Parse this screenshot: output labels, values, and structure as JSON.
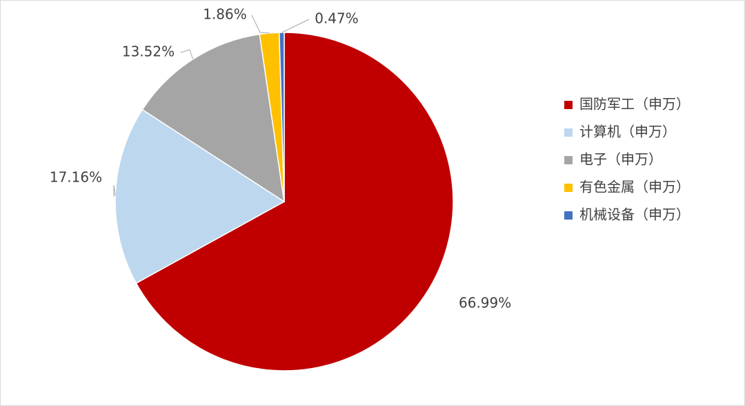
{
  "chart_data": {
    "type": "pie",
    "categories": [
      "国防军工（申万）",
      "计算机（申万）",
      "电子（申万）",
      "有色金属（申万）",
      "机械设备（申万）"
    ],
    "values": [
      66.99,
      17.16,
      13.52,
      1.86,
      0.47
    ],
    "value_labels": [
      "66.99%",
      "17.16%",
      "13.52%",
      "1.86%",
      "0.47%"
    ],
    "colors": [
      "#c00000",
      "#bdd7ee",
      "#a5a5a5",
      "#ffc000",
      "#4472c4"
    ],
    "legend": "right"
  }
}
